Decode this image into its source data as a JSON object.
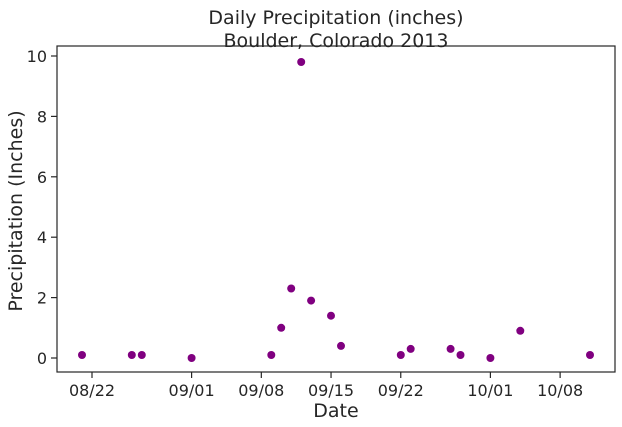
{
  "chart_data": {
    "type": "scatter",
    "title_line1": "Daily Precipitation (inches)",
    "title_line2": "Boulder, Colorado 2013",
    "xlabel": "Date",
    "ylabel": "Precipitation (Inches)",
    "x_ticks": [
      "08/22",
      "09/01",
      "09/08",
      "09/15",
      "09/22",
      "10/01",
      "10/08"
    ],
    "y_ticks": [
      "0",
      "2",
      "4",
      "6",
      "8",
      "10"
    ],
    "point_color": "#800080",
    "grid": false,
    "points": [
      {
        "date": "2013-08-21",
        "value": 0.1
      },
      {
        "date": "2013-08-26",
        "value": 0.1
      },
      {
        "date": "2013-08-27",
        "value": 0.1
      },
      {
        "date": "2013-09-01",
        "value": 0.0
      },
      {
        "date": "2013-09-09",
        "value": 0.1
      },
      {
        "date": "2013-09-10",
        "value": 1.0
      },
      {
        "date": "2013-09-11",
        "value": 2.3
      },
      {
        "date": "2013-09-12",
        "value": 9.8
      },
      {
        "date": "2013-09-13",
        "value": 1.9
      },
      {
        "date": "2013-09-15",
        "value": 1.4
      },
      {
        "date": "2013-09-16",
        "value": 0.4
      },
      {
        "date": "2013-09-22",
        "value": 0.1
      },
      {
        "date": "2013-09-23",
        "value": 0.3
      },
      {
        "date": "2013-09-27",
        "value": 0.3
      },
      {
        "date": "2013-09-28",
        "value": 0.1
      },
      {
        "date": "2013-10-01",
        "value": 0.0
      },
      {
        "date": "2013-10-04",
        "value": 0.9
      },
      {
        "date": "2013-10-11",
        "value": 0.1
      }
    ]
  }
}
